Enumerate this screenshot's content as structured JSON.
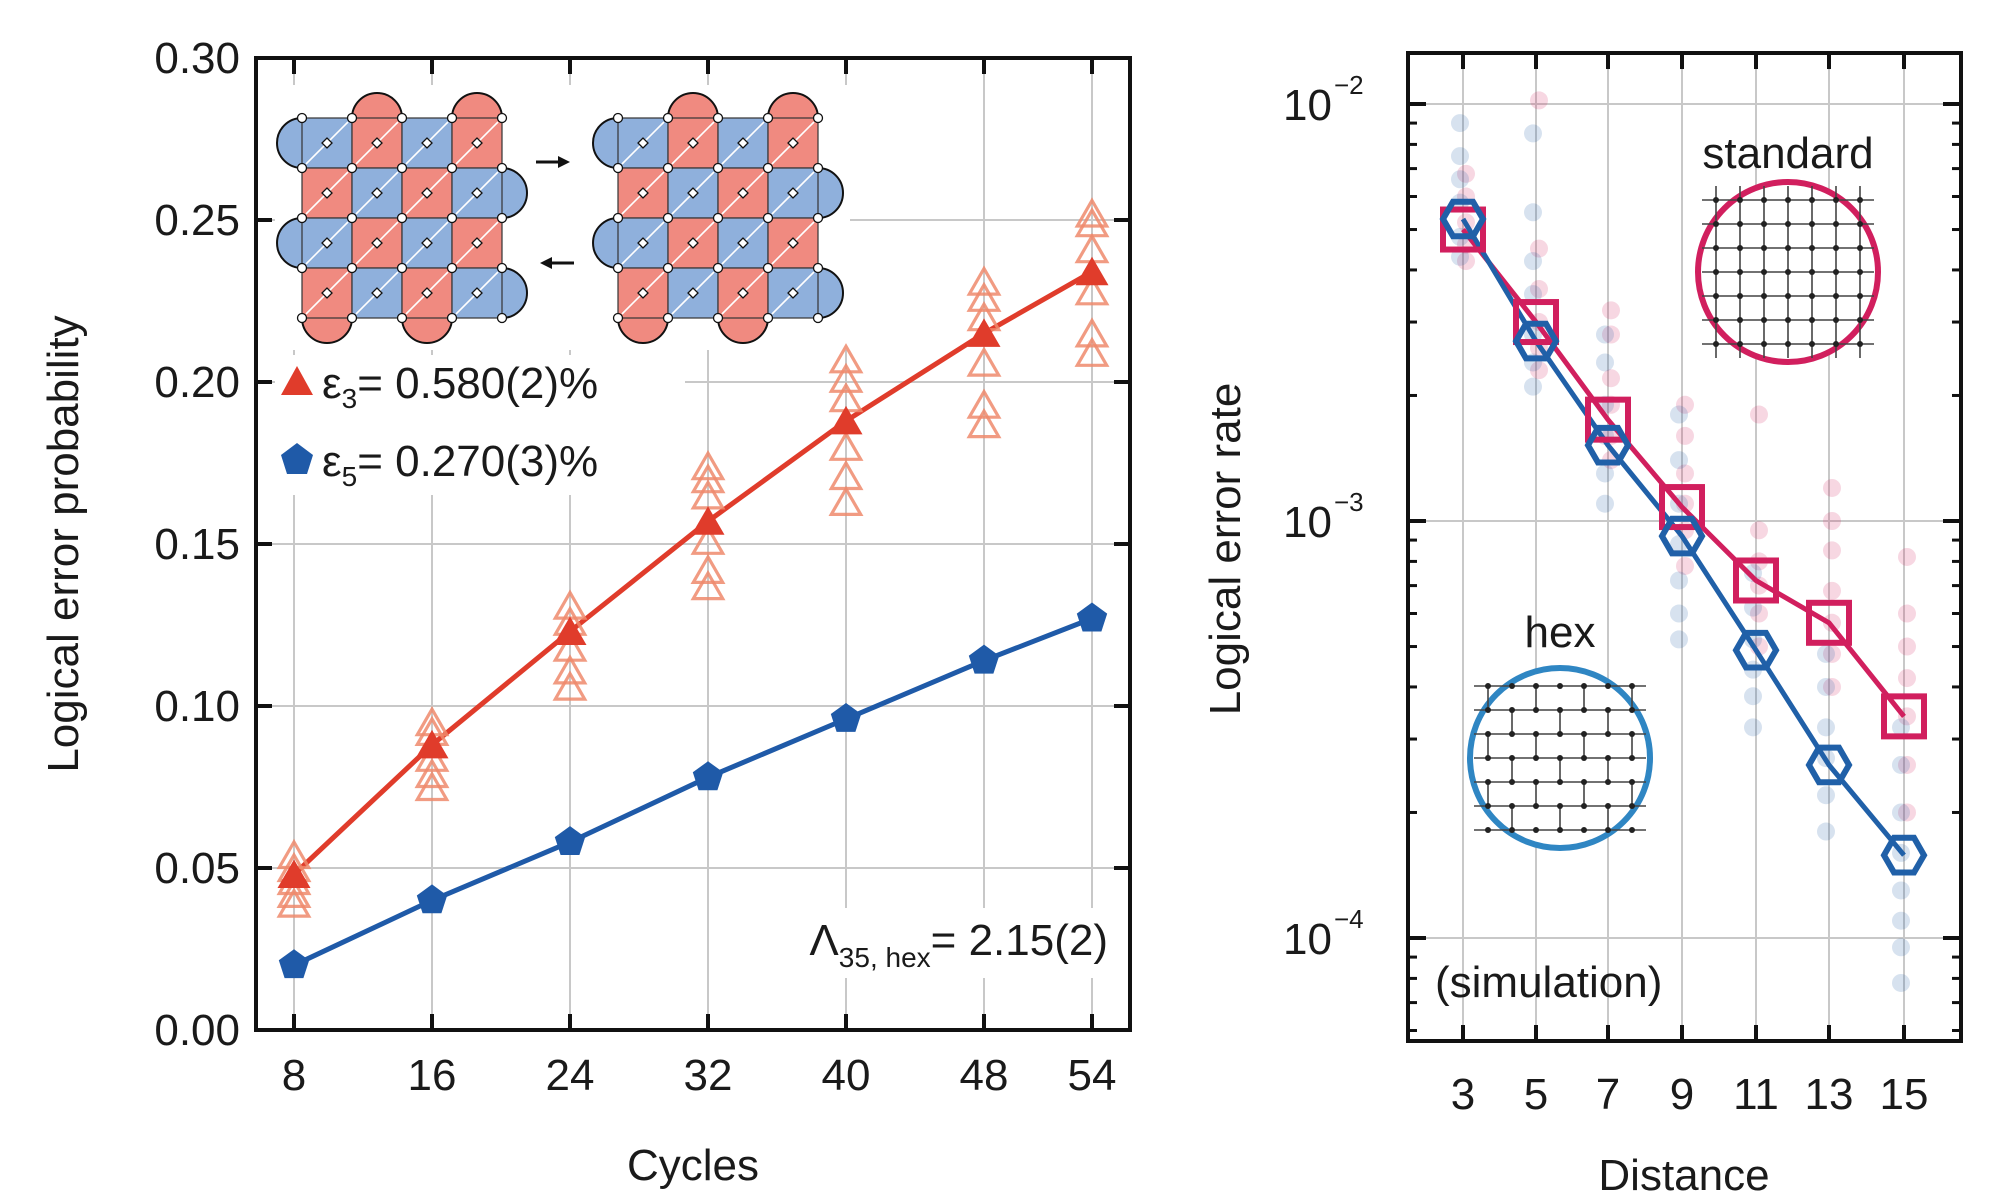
{
  "chart_data": [
    {
      "type": "line",
      "xlabel": "Cycles",
      "ylabel": "Logical error probability",
      "categories": [
        "8",
        "16",
        "24",
        "32",
        "40",
        "48",
        "54"
      ],
      "x": [
        8,
        16,
        24,
        32,
        40,
        48,
        54
      ],
      "ylim": [
        0,
        0.3
      ],
      "yticks": [
        "0.00",
        "0.05",
        "0.10",
        "0.15",
        "0.20",
        "0.25",
        "0.30"
      ],
      "grid": true,
      "legend_position": "upper-left",
      "series": [
        {
          "name_main": "ε",
          "name_sub": "3",
          "name_rest": "= 0.580(2)%",
          "marker": "triangle",
          "color": "#e03c2b",
          "values": [
            0.048,
            0.088,
            0.123,
            0.157,
            0.188,
            0.215,
            0.234
          ]
        },
        {
          "name_main": "ε",
          "name_sub": "5",
          "name_rest": "= 0.270(3)%",
          "marker": "pentagon",
          "color": "#1f5aa8",
          "values": [
            0.02,
            0.04,
            0.058,
            0.078,
            0.096,
            0.114,
            0.127
          ]
        }
      ],
      "scatter_samples": {
        "name": "ε3 individual",
        "color": "#ee8a6c",
        "points": [
          [
            8,
            0.039
          ],
          [
            8,
            0.042
          ],
          [
            8,
            0.046
          ],
          [
            8,
            0.05
          ],
          [
            8,
            0.054
          ],
          [
            16,
            0.075
          ],
          [
            16,
            0.079
          ],
          [
            16,
            0.084
          ],
          [
            16,
            0.092
          ],
          [
            16,
            0.095
          ],
          [
            24,
            0.106
          ],
          [
            24,
            0.111
          ],
          [
            24,
            0.118
          ],
          [
            24,
            0.126
          ],
          [
            24,
            0.131
          ],
          [
            32,
            0.137
          ],
          [
            32,
            0.142
          ],
          [
            32,
            0.151
          ],
          [
            32,
            0.165
          ],
          [
            32,
            0.17
          ],
          [
            32,
            0.174
          ],
          [
            40,
            0.163
          ],
          [
            40,
            0.171
          ],
          [
            40,
            0.18
          ],
          [
            40,
            0.195
          ],
          [
            40,
            0.201
          ],
          [
            40,
            0.207
          ],
          [
            48,
            0.187
          ],
          [
            48,
            0.193
          ],
          [
            48,
            0.206
          ],
          [
            48,
            0.22
          ],
          [
            48,
            0.226
          ],
          [
            48,
            0.231
          ],
          [
            54,
            0.209
          ],
          [
            54,
            0.215
          ],
          [
            54,
            0.228
          ],
          [
            54,
            0.241
          ],
          [
            54,
            0.249
          ],
          [
            54,
            0.252
          ]
        ]
      },
      "annotation": {
        "main": "Λ",
        "sub": "35, hex",
        "rest": "= 2.15(2)"
      }
    },
    {
      "type": "line",
      "xlabel": "Distance",
      "ylabel": "Logical error rate",
      "categories": [
        "3",
        "5",
        "7",
        "9",
        "11",
        "13",
        "15"
      ],
      "x": [
        3,
        5,
        7,
        9,
        11,
        13,
        15
      ],
      "yscale": "log",
      "ylim": [
        6e-05,
        0.013
      ],
      "yticks": [
        {
          "base": "10",
          "exp": "−2",
          "value": 0.01
        },
        {
          "base": "10",
          "exp": "−3",
          "value": 0.001
        },
        {
          "base": "10",
          "exp": "−4",
          "value": 0.0001
        }
      ],
      "grid": true,
      "series": [
        {
          "name": "standard",
          "marker": "square",
          "color": "#d11f5e",
          "values": [
            0.005,
            0.003,
            0.00175,
            0.00108,
            0.00072,
            0.00057,
            0.00034
          ]
        },
        {
          "name": "hex",
          "marker": "hexagon",
          "color": "#2060a8",
          "values": [
            0.0053,
            0.0027,
            0.00152,
            0.00092,
            0.00049,
            0.00026,
            0.000158
          ]
        }
      ],
      "scatter_samples": {
        "standard_color": "#d11f5e",
        "hex_color": "#2060a8",
        "standard_points": [
          [
            3,
            0.0068
          ],
          [
            3,
            0.006
          ],
          [
            3,
            0.0052
          ],
          [
            3,
            0.0046
          ],
          [
            3,
            0.0042
          ],
          [
            5,
            0.0102
          ],
          [
            5,
            0.0045
          ],
          [
            5,
            0.0036
          ],
          [
            5,
            0.003
          ],
          [
            5,
            0.0026
          ],
          [
            5,
            0.0023
          ],
          [
            7,
            0.0032
          ],
          [
            7,
            0.0028
          ],
          [
            7,
            0.0022
          ],
          [
            7,
            0.0019
          ],
          [
            7,
            0.0016
          ],
          [
            7,
            0.0014
          ],
          [
            9,
            0.0019
          ],
          [
            9,
            0.0016
          ],
          [
            9,
            0.0013
          ],
          [
            9,
            0.0011
          ],
          [
            9,
            0.00095
          ],
          [
            9,
            0.00078
          ],
          [
            11,
            0.0018
          ],
          [
            11,
            0.00095
          ],
          [
            11,
            0.0008
          ],
          [
            11,
            0.0007
          ],
          [
            11,
            0.0006
          ],
          [
            11,
            0.0005
          ],
          [
            13,
            0.0012
          ],
          [
            13,
            0.001
          ],
          [
            13,
            0.00085
          ],
          [
            13,
            0.00068
          ],
          [
            13,
            0.00057
          ],
          [
            13,
            0.00048
          ],
          [
            13,
            0.0004
          ],
          [
            15,
            0.00082
          ],
          [
            15,
            0.0006
          ],
          [
            15,
            0.0005
          ],
          [
            15,
            0.00042
          ],
          [
            15,
            0.00034
          ],
          [
            15,
            0.00026
          ],
          [
            15,
            0.0002
          ]
        ],
        "hex_points": [
          [
            3,
            0.009
          ],
          [
            3,
            0.0075
          ],
          [
            3,
            0.0066
          ],
          [
            3,
            0.0058
          ],
          [
            3,
            0.0048
          ],
          [
            3,
            0.0043
          ],
          [
            5,
            0.0085
          ],
          [
            5,
            0.0055
          ],
          [
            5,
            0.0042
          ],
          [
            5,
            0.0035
          ],
          [
            5,
            0.0028
          ],
          [
            5,
            0.0024
          ],
          [
            5,
            0.0021
          ],
          [
            7,
            0.0028
          ],
          [
            7,
            0.0024
          ],
          [
            7,
            0.0019
          ],
          [
            7,
            0.0016
          ],
          [
            7,
            0.0013
          ],
          [
            7,
            0.0011
          ],
          [
            9,
            0.0018
          ],
          [
            9,
            0.0014
          ],
          [
            9,
            0.0011
          ],
          [
            9,
            0.00088
          ],
          [
            9,
            0.00072
          ],
          [
            9,
            0.0006
          ],
          [
            9,
            0.00052
          ],
          [
            11,
            0.00075
          ],
          [
            11,
            0.00062
          ],
          [
            11,
            0.00052
          ],
          [
            11,
            0.00044
          ],
          [
            11,
            0.00038
          ],
          [
            11,
            0.00032
          ],
          [
            13,
            0.00048
          ],
          [
            13,
            0.0004
          ],
          [
            13,
            0.00032
          ],
          [
            13,
            0.00027
          ],
          [
            13,
            0.00022
          ],
          [
            13,
            0.00018
          ],
          [
            15,
            0.00032
          ],
          [
            15,
            0.00026
          ],
          [
            15,
            0.0002
          ],
          [
            15,
            0.00016
          ],
          [
            15,
            0.00013
          ],
          [
            15,
            0.00011
          ],
          [
            15,
            9.5e-05
          ],
          [
            15,
            7.8e-05
          ]
        ]
      },
      "annotation": "(simulation)"
    }
  ]
}
